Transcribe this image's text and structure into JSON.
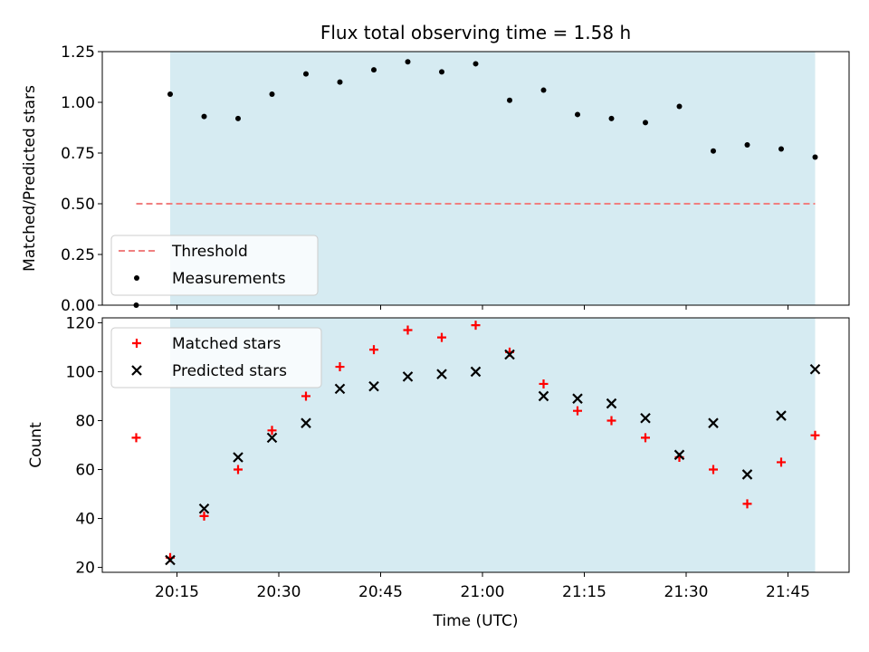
{
  "chart_data": [
    {
      "type": "scatter",
      "title": "Flux total observing time = 1.58 h",
      "ylabel": "Matched/Predicted stars",
      "xlabel": "",
      "ylim": [
        0,
        1.25
      ],
      "yticks": [
        "0.00",
        "0.25",
        "0.50",
        "0.75",
        "1.00",
        "1.25"
      ],
      "shaded_span": [
        "20:14",
        "21:49"
      ],
      "shade_color": "#add8e6",
      "threshold": {
        "name": "Threshold",
        "value": 0.5,
        "x_range": [
          "20:09",
          "21:49"
        ],
        "color": "#f08080"
      },
      "series": [
        {
          "name": "Measurements",
          "color": "#000000",
          "marker": "dot",
          "points": [
            {
              "x": "20:09",
              "y": 0.0
            },
            {
              "x": "20:14",
              "y": 1.04
            },
            {
              "x": "20:19",
              "y": 0.93
            },
            {
              "x": "20:24",
              "y": 0.92
            },
            {
              "x": "20:29",
              "y": 1.04
            },
            {
              "x": "20:34",
              "y": 1.14
            },
            {
              "x": "20:39",
              "y": 1.1
            },
            {
              "x": "20:44",
              "y": 1.16
            },
            {
              "x": "20:49",
              "y": 1.2
            },
            {
              "x": "20:54",
              "y": 1.15
            },
            {
              "x": "20:59",
              "y": 1.19
            },
            {
              "x": "21:04",
              "y": 1.01
            },
            {
              "x": "21:09",
              "y": 1.06
            },
            {
              "x": "21:14",
              "y": 0.94
            },
            {
              "x": "21:19",
              "y": 0.92
            },
            {
              "x": "21:24",
              "y": 0.9
            },
            {
              "x": "21:29",
              "y": 0.98
            },
            {
              "x": "21:34",
              "y": 0.76
            },
            {
              "x": "21:39",
              "y": 0.79
            },
            {
              "x": "21:44",
              "y": 0.77
            },
            {
              "x": "21:49",
              "y": 0.73
            }
          ]
        }
      ],
      "legend": {
        "placement": "lower-left",
        "entries": [
          "Threshold",
          "Measurements"
        ]
      }
    },
    {
      "type": "scatter",
      "title": "",
      "ylabel": "Count",
      "xlabel": "Time (UTC)",
      "ylim": [
        18,
        122
      ],
      "yticks": [
        "20",
        "40",
        "60",
        "80",
        "100",
        "120"
      ],
      "xlim": [
        "20:04",
        "21:54"
      ],
      "xticks": [
        "20:15",
        "20:30",
        "20:45",
        "21:00",
        "21:15",
        "21:30",
        "21:45"
      ],
      "shaded_span": [
        "20:14",
        "21:49"
      ],
      "shade_color": "#add8e6",
      "series": [
        {
          "name": "Matched stars",
          "color": "#ff0000",
          "marker": "plus",
          "points": [
            {
              "x": "20:09",
              "y": 73
            },
            {
              "x": "20:14",
              "y": 24
            },
            {
              "x": "20:19",
              "y": 41
            },
            {
              "x": "20:24",
              "y": 60
            },
            {
              "x": "20:29",
              "y": 76
            },
            {
              "x": "20:34",
              "y": 90
            },
            {
              "x": "20:39",
              "y": 102
            },
            {
              "x": "20:44",
              "y": 109
            },
            {
              "x": "20:49",
              "y": 117
            },
            {
              "x": "20:54",
              "y": 114
            },
            {
              "x": "20:59",
              "y": 119
            },
            {
              "x": "21:04",
              "y": 108
            },
            {
              "x": "21:09",
              "y": 95
            },
            {
              "x": "21:14",
              "y": 84
            },
            {
              "x": "21:19",
              "y": 80
            },
            {
              "x": "21:24",
              "y": 73
            },
            {
              "x": "21:29",
              "y": 65
            },
            {
              "x": "21:34",
              "y": 60
            },
            {
              "x": "21:39",
              "y": 46
            },
            {
              "x": "21:44",
              "y": 63
            },
            {
              "x": "21:49",
              "y": 74
            }
          ]
        },
        {
          "name": "Predicted stars",
          "color": "#000000",
          "marker": "x",
          "points": [
            {
              "x": "20:14",
              "y": 23
            },
            {
              "x": "20:19",
              "y": 44
            },
            {
              "x": "20:24",
              "y": 65
            },
            {
              "x": "20:29",
              "y": 73
            },
            {
              "x": "20:34",
              "y": 79
            },
            {
              "x": "20:39",
              "y": 93
            },
            {
              "x": "20:44",
              "y": 94
            },
            {
              "x": "20:49",
              "y": 98
            },
            {
              "x": "20:54",
              "y": 99
            },
            {
              "x": "20:59",
              "y": 100
            },
            {
              "x": "21:04",
              "y": 107
            },
            {
              "x": "21:09",
              "y": 90
            },
            {
              "x": "21:14",
              "y": 89
            },
            {
              "x": "21:19",
              "y": 87
            },
            {
              "x": "21:24",
              "y": 81
            },
            {
              "x": "21:29",
              "y": 66
            },
            {
              "x": "21:34",
              "y": 79
            },
            {
              "x": "21:39",
              "y": 58
            },
            {
              "x": "21:44",
              "y": 82
            },
            {
              "x": "21:49",
              "y": 101
            }
          ]
        }
      ],
      "legend": {
        "placement": "top-left",
        "entries": [
          "Matched stars",
          "Predicted stars"
        ]
      }
    }
  ]
}
